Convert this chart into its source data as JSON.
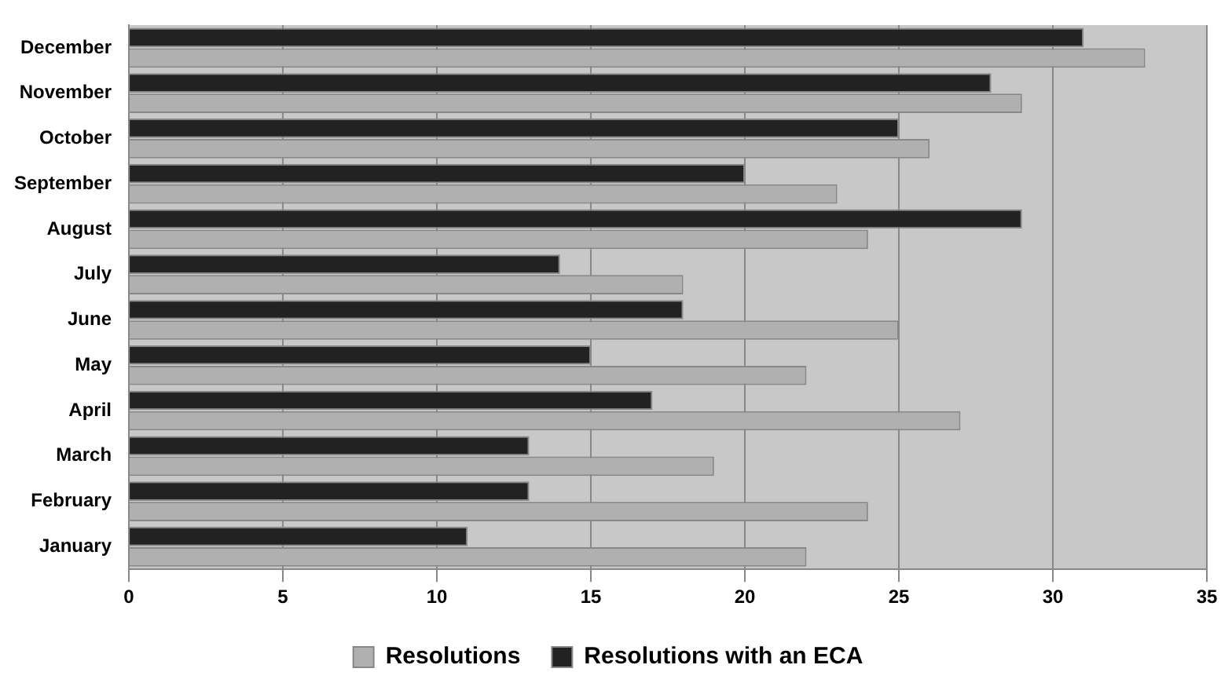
{
  "chart_data": {
    "type": "bar",
    "orientation": "horizontal",
    "categories": [
      "December",
      "November",
      "October",
      "September",
      "August",
      "July",
      "June",
      "May",
      "April",
      "March",
      "February",
      "January"
    ],
    "series": [
      {
        "name": "Resolutions",
        "color": "#b0b0b0",
        "values": [
          33,
          29,
          26,
          23,
          24,
          18,
          25,
          22,
          27,
          19,
          24,
          22
        ]
      },
      {
        "name": "Resolutions with an ECA",
        "color": "#222222",
        "values": [
          31,
          28,
          25,
          20,
          29,
          14,
          18,
          15,
          17,
          13,
          13,
          11
        ]
      }
    ],
    "xlim": [
      0,
      35
    ],
    "xticks": [
      0,
      5,
      10,
      15,
      20,
      25,
      30,
      35
    ],
    "grid": "x",
    "legend": "bottom"
  }
}
